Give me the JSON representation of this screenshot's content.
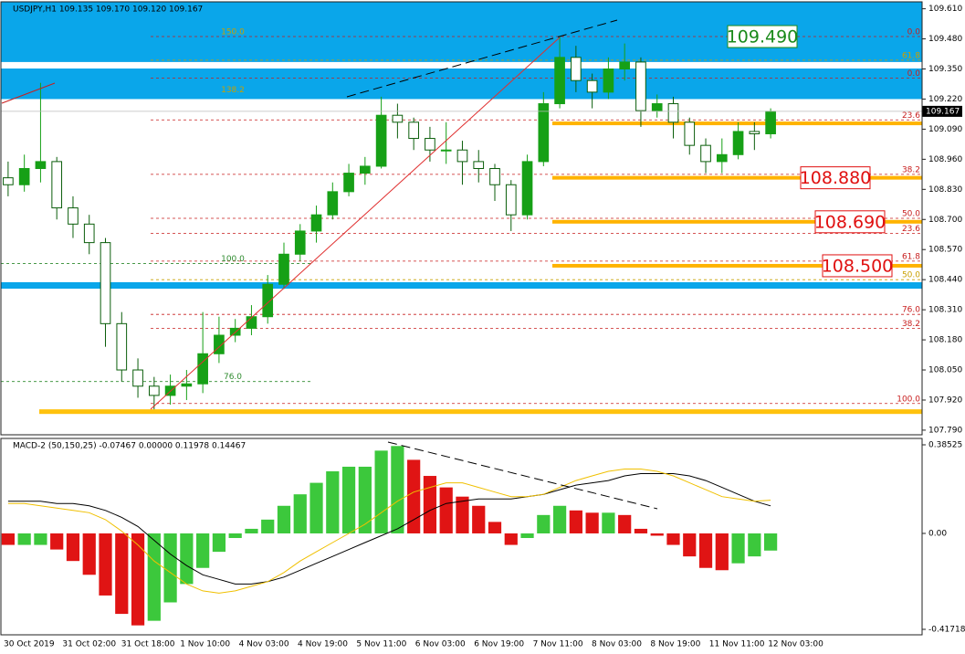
{
  "chart_data": {
    "type": "candlestick",
    "title": "USDJPY,H1  109.135 109.170 109.120 109.167",
    "ylim": [
      107.77,
      109.64
    ],
    "yticks": [
      {
        "value": 109.61,
        "label": "109.610"
      },
      {
        "value": 109.48,
        "label": "109.480"
      },
      {
        "value": 109.35,
        "label": "109.350"
      },
      {
        "value": 109.22,
        "label": "109.220"
      },
      {
        "value": 109.09,
        "label": "109.090"
      },
      {
        "value": 108.96,
        "label": "108.960"
      },
      {
        "value": 108.83,
        "label": "108.830"
      },
      {
        "value": 108.7,
        "label": "108.700"
      },
      {
        "value": 108.57,
        "label": "108.570"
      },
      {
        "value": 108.44,
        "label": "108.440"
      },
      {
        "value": 108.31,
        "label": "108.310"
      },
      {
        "value": 108.18,
        "label": "108.180"
      },
      {
        "value": 108.05,
        "label": "108.050"
      },
      {
        "value": 107.92,
        "label": "107.920"
      },
      {
        "value": 107.79,
        "label": "107.790"
      }
    ],
    "x_labels": [
      "30 Oct 2019",
      "31 Oct 02:00",
      "31 Oct 18:00",
      "1 Nov 10:00",
      "4 Nov 03:00",
      "4 Nov 19:00",
      "5 Nov 11:00",
      "6 Nov 03:00",
      "6 Nov 19:00",
      "7 Nov 11:00",
      "8 Nov 03:00",
      "8 Nov 19:00",
      "11 Nov 11:00",
      "12 Nov 03:00"
    ],
    "up_color": "#16a016",
    "down_color": "#0b5e0b",
    "ohlc": [
      [
        108.88,
        108.95,
        108.8,
        108.85
      ],
      [
        108.85,
        108.98,
        108.82,
        108.92
      ],
      [
        108.92,
        109.29,
        108.86,
        108.95
      ],
      [
        108.95,
        108.97,
        108.7,
        108.75
      ],
      [
        108.75,
        108.8,
        108.62,
        108.68
      ],
      [
        108.68,
        108.72,
        108.55,
        108.6
      ],
      [
        108.6,
        108.62,
        108.15,
        108.25
      ],
      [
        108.25,
        108.3,
        108.0,
        108.05
      ],
      [
        108.05,
        108.1,
        107.93,
        107.98
      ],
      [
        107.98,
        108.02,
        107.88,
        107.94
      ],
      [
        107.94,
        108.03,
        107.9,
        107.98
      ],
      [
        107.98,
        108.05,
        107.92,
        107.99
      ],
      [
        107.99,
        108.3,
        107.95,
        108.12
      ],
      [
        108.12,
        108.28,
        108.08,
        108.2
      ],
      [
        108.2,
        108.27,
        108.17,
        108.23
      ],
      [
        108.23,
        108.33,
        108.2,
        108.28
      ],
      [
        108.28,
        108.46,
        108.25,
        108.42
      ],
      [
        108.42,
        108.6,
        108.4,
        108.55
      ],
      [
        108.55,
        108.68,
        108.52,
        108.65
      ],
      [
        108.65,
        108.76,
        108.6,
        108.72
      ],
      [
        108.72,
        108.86,
        108.7,
        108.82
      ],
      [
        108.82,
        108.94,
        108.8,
        108.9
      ],
      [
        108.9,
        108.97,
        108.85,
        108.93
      ],
      [
        108.93,
        109.23,
        108.92,
        109.15
      ],
      [
        109.15,
        109.2,
        109.05,
        109.12
      ],
      [
        109.12,
        109.14,
        109.0,
        109.05
      ],
      [
        109.05,
        109.1,
        108.95,
        109.0
      ],
      [
        109.0,
        109.12,
        108.94,
        109.0
      ],
      [
        109.0,
        109.04,
        108.85,
        108.95
      ],
      [
        108.95,
        109.0,
        108.86,
        108.92
      ],
      [
        108.92,
        108.94,
        108.78,
        108.85
      ],
      [
        108.85,
        108.87,
        108.65,
        108.72
      ],
      [
        108.72,
        108.98,
        108.7,
        108.95
      ],
      [
        108.95,
        109.25,
        108.93,
        109.2
      ],
      [
        109.2,
        109.49,
        109.18,
        109.4
      ],
      [
        109.4,
        109.45,
        109.25,
        109.3
      ],
      [
        109.3,
        109.33,
        109.18,
        109.25
      ],
      [
        109.25,
        109.4,
        109.22,
        109.35
      ],
      [
        109.35,
        109.46,
        109.3,
        109.38
      ],
      [
        109.38,
        109.4,
        109.1,
        109.17
      ],
      [
        109.17,
        109.24,
        109.14,
        109.2
      ],
      [
        109.2,
        109.23,
        109.05,
        109.12
      ],
      [
        109.12,
        109.14,
        108.98,
        109.02
      ],
      [
        109.02,
        109.05,
        108.9,
        108.95
      ],
      [
        108.95,
        109.05,
        108.9,
        108.98
      ],
      [
        108.98,
        109.12,
        108.96,
        109.08
      ],
      [
        109.08,
        109.12,
        109.0,
        109.07
      ],
      [
        109.07,
        109.18,
        109.05,
        109.167
      ]
    ],
    "current_price": {
      "value": 109.167,
      "label": "109.167"
    },
    "zones": [
      {
        "range": [
          109.38,
          109.648
        ],
        "color": "#0aa6ea"
      },
      {
        "range": [
          109.22,
          109.352
        ],
        "color": "#0aa6ea"
      },
      {
        "range": [
          108.401,
          108.429
        ],
        "color": "#0aa6ea"
      },
      {
        "range": [
          107.86,
          107.88
        ],
        "color": "#ffc20e"
      }
    ],
    "support_lines": [
      109.115,
      108.88,
      108.69,
      108.5
    ],
    "support_color": "#ffb300",
    "levels": [
      {
        "value": 109.49,
        "label": "0.0",
        "color": "#c81e1e"
      },
      {
        "value": 109.388,
        "label": "61.8",
        "color": "#c8a000"
      },
      {
        "value": 109.31,
        "label": "0.0",
        "color": "#c81e1e"
      },
      {
        "value": 109.13,
        "label": "23.6",
        "color": "#c81e1e"
      },
      {
        "value": 108.895,
        "label": "38.2",
        "color": "#c81e1e"
      },
      {
        "value": 108.705,
        "label": "50.0",
        "color": "#c81e1e"
      },
      {
        "value": 108.64,
        "label": "23.6",
        "color": "#c81e1e"
      },
      {
        "value": 108.52,
        "label": "61.8",
        "color": "#c81e1e"
      },
      {
        "value": 108.44,
        "label": "50.0",
        "color": "#c8a000"
      },
      {
        "value": 108.29,
        "label": "76.0",
        "color": "#c81e1e"
      },
      {
        "value": 108.23,
        "label": "38.2",
        "color": "#c81e1e"
      },
      {
        "value": 107.905,
        "label": "100.0",
        "color": "#c81e1e"
      }
    ],
    "left_levels": [
      {
        "value": 109.49,
        "label": "150.0",
        "color": "#c8a000"
      },
      {
        "value": 109.24,
        "label": "138.2",
        "color": "#c8a000"
      },
      {
        "value": 108.51,
        "label": "100.0",
        "color": "#2e8b2e"
      },
      {
        "value": 108.0,
        "label": "76.0",
        "color": "#2e8b2e"
      }
    ],
    "annotations": [
      {
        "text": "109.490",
        "value": 109.49,
        "color": "#1a8a1a"
      },
      {
        "text": "108.880",
        "value": 108.88,
        "color": "#e01010"
      },
      {
        "text": "108.690",
        "value": 108.69,
        "color": "#e01010"
      },
      {
        "text": "108.500",
        "value": 108.5,
        "color": "#e01010"
      }
    ],
    "macd": {
      "title": "MACD-2 (50,150,25) -0.07467 0.00000 0.11978 0.14467",
      "ylim": [
        -0.441,
        0.413
      ],
      "yticks": [
        0.38525,
        {
          "value": 0,
          "label": "0.00"
        },
        -0.41718
      ],
      "rise_color": "#3cc83c",
      "fall_color": "#e01414",
      "histogram": [
        -0.05,
        -0.05,
        -0.05,
        -0.07,
        -0.12,
        -0.18,
        -0.27,
        -0.35,
        -0.4,
        -0.38,
        -0.3,
        -0.22,
        -0.15,
        -0.08,
        -0.02,
        0.02,
        0.06,
        0.12,
        0.17,
        0.22,
        0.27,
        0.29,
        0.29,
        0.36,
        0.38,
        0.32,
        0.25,
        0.2,
        0.16,
        0.12,
        0.05,
        -0.05,
        -0.02,
        0.08,
        0.12,
        0.1,
        0.09,
        0.09,
        0.08,
        0.02,
        -0.01,
        -0.05,
        -0.1,
        -0.15,
        -0.16,
        -0.13,
        -0.1,
        -0.07467
      ],
      "lines": [
        {
          "color": "#000000",
          "values": [
            0.14,
            0.14,
            0.14,
            0.13,
            0.13,
            0.12,
            0.1,
            0.07,
            0.03,
            -0.03,
            -0.09,
            -0.14,
            -0.18,
            -0.2,
            -0.22,
            -0.22,
            -0.21,
            -0.19,
            -0.16,
            -0.13,
            -0.1,
            -0.07,
            -0.04,
            -0.01,
            0.02,
            0.06,
            0.1,
            0.13,
            0.14,
            0.15,
            0.15,
            0.15,
            0.16,
            0.17,
            0.19,
            0.21,
            0.22,
            0.23,
            0.25,
            0.26,
            0.26,
            0.26,
            0.25,
            0.23,
            0.2,
            0.17,
            0.14,
            0.11978
          ]
        },
        {
          "color": "#f0c000",
          "values": [
            0.13,
            0.13,
            0.12,
            0.11,
            0.1,
            0.09,
            0.06,
            0.01,
            -0.05,
            -0.12,
            -0.17,
            -0.22,
            -0.25,
            -0.26,
            -0.25,
            -0.23,
            -0.21,
            -0.17,
            -0.12,
            -0.08,
            -0.04,
            0.0,
            0.04,
            0.09,
            0.14,
            0.18,
            0.2,
            0.22,
            0.22,
            0.2,
            0.18,
            0.16,
            0.16,
            0.17,
            0.2,
            0.23,
            0.25,
            0.27,
            0.28,
            0.28,
            0.27,
            0.25,
            0.22,
            0.19,
            0.16,
            0.15,
            0.14,
            0.14467
          ]
        }
      ]
    }
  }
}
